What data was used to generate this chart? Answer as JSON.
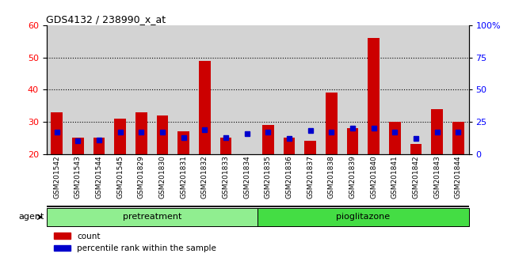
{
  "title": "GDS4132 / 238990_x_at",
  "samples": [
    "GSM201542",
    "GSM201543",
    "GSM201544",
    "GSM201545",
    "GSM201829",
    "GSM201830",
    "GSM201831",
    "GSM201832",
    "GSM201833",
    "GSM201834",
    "GSM201835",
    "GSM201836",
    "GSM201837",
    "GSM201838",
    "GSM201839",
    "GSM201840",
    "GSM201841",
    "GSM201842",
    "GSM201843",
    "GSM201844"
  ],
  "count_values": [
    33,
    25,
    25,
    31,
    33,
    32,
    27,
    49,
    25,
    20,
    29,
    25,
    24,
    39,
    28,
    56,
    30,
    23,
    34,
    30
  ],
  "percentile_values": [
    17,
    10,
    11,
    17,
    17,
    17,
    13,
    19,
    13,
    16,
    17,
    12,
    18,
    17,
    20,
    20,
    17,
    12,
    17,
    17
  ],
  "groups": [
    {
      "label": "pretreatment",
      "start": 0,
      "end": 9,
      "color": "#90ee90"
    },
    {
      "label": "pioglitazone",
      "start": 10,
      "end": 19,
      "color": "#44dd44"
    }
  ],
  "group_label": "agent",
  "bar_color": "#cc0000",
  "percentile_color": "#0000cc",
  "ylim_left": [
    20,
    60
  ],
  "ylim_right": [
    0,
    100
  ],
  "yticks_left": [
    20,
    30,
    40,
    50,
    60
  ],
  "yticks_right": [
    0,
    25,
    50,
    75,
    100
  ],
  "yticklabels_right": [
    "0",
    "25",
    "50",
    "75",
    "100%"
  ],
  "grid_values": [
    30,
    40,
    50
  ],
  "bar_width": 0.55,
  "legend_items": [
    {
      "label": "count",
      "color": "#cc0000"
    },
    {
      "label": "percentile rank within the sample",
      "color": "#0000cc"
    }
  ],
  "bg_color": "#d3d3d3",
  "fig_bg": "#ffffff"
}
